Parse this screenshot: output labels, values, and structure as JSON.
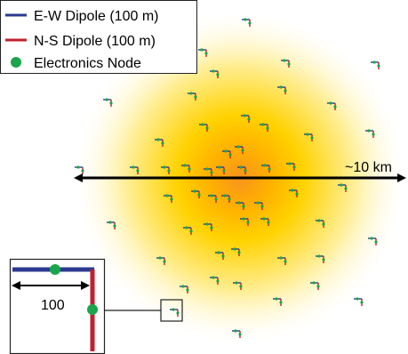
{
  "legend": {
    "items": [
      {
        "key": "ew",
        "label": "E-W Dipole (100 m)",
        "marker": "line",
        "color": "#2b3a8f"
      },
      {
        "key": "ns",
        "label": "N-S Dipole (100 m)",
        "marker": "line",
        "color": "#c0202f"
      },
      {
        "key": "node",
        "label": "Electronics Node",
        "marker": "dot",
        "color": "#1aa64a"
      }
    ]
  },
  "scale": {
    "array_width_label": "~10 km",
    "inset_length_label": "100"
  },
  "colors": {
    "ew_dipole": "#2b3a8f",
    "ns_dipole": "#c0202f",
    "node": "#1aa64a",
    "glow_center": "#f7931e",
    "glow_mid": "#ffd200",
    "glow_edge": "#fff8d0",
    "frame": "#222222",
    "arrow": "#000000"
  },
  "antenna_count": 57
}
